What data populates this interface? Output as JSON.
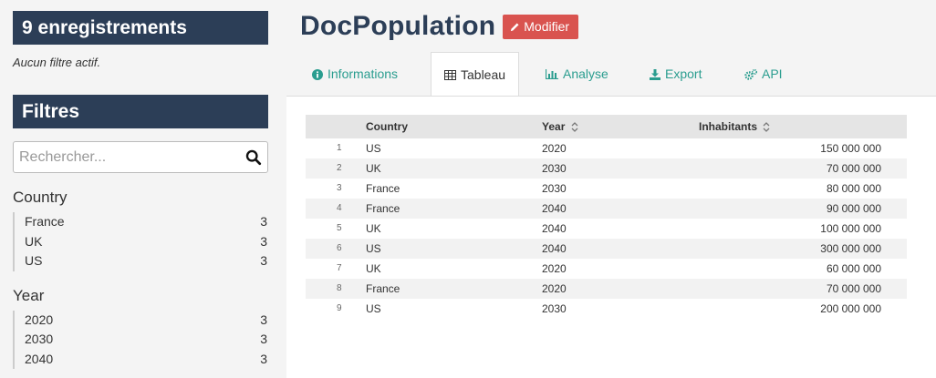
{
  "sidebar": {
    "record_count": "9 enregistrements",
    "no_filter": "Aucun filtre actif.",
    "filters_title": "Filtres",
    "search_placeholder": "Rechercher...",
    "facets": [
      {
        "title": "Country",
        "items": [
          {
            "label": "France",
            "count": "3"
          },
          {
            "label": "UK",
            "count": "3"
          },
          {
            "label": "US",
            "count": "3"
          }
        ]
      },
      {
        "title": "Year",
        "items": [
          {
            "label": "2020",
            "count": "3"
          },
          {
            "label": "2030",
            "count": "3"
          },
          {
            "label": "2040",
            "count": "3"
          }
        ]
      }
    ]
  },
  "header": {
    "title": "DocPopulation",
    "modify_label": "Modifier"
  },
  "tabs": [
    {
      "label": "Informations",
      "icon": "info-circle-icon"
    },
    {
      "label": "Tableau",
      "icon": "table-icon",
      "active": true
    },
    {
      "label": "Analyse",
      "icon": "bar-chart-icon"
    },
    {
      "label": "Export",
      "icon": "download-icon"
    },
    {
      "label": "API",
      "icon": "gears-icon"
    }
  ],
  "table": {
    "headers": {
      "country": "Country",
      "year": "Year",
      "inhabitants": "Inhabitants"
    },
    "rows": [
      {
        "idx": "1",
        "country": "US",
        "year": "2020",
        "inhabitants": "150 000 000"
      },
      {
        "idx": "2",
        "country": "UK",
        "year": "2030",
        "inhabitants": "70 000 000"
      },
      {
        "idx": "3",
        "country": "France",
        "year": "2030",
        "inhabitants": "80 000 000"
      },
      {
        "idx": "4",
        "country": "France",
        "year": "2040",
        "inhabitants": "90 000 000"
      },
      {
        "idx": "5",
        "country": "UK",
        "year": "2040",
        "inhabitants": "100 000 000"
      },
      {
        "idx": "6",
        "country": "US",
        "year": "2040",
        "inhabitants": "300 000 000"
      },
      {
        "idx": "7",
        "country": "UK",
        "year": "2020",
        "inhabitants": "60 000 000"
      },
      {
        "idx": "8",
        "country": "France",
        "year": "2020",
        "inhabitants": "70 000 000"
      },
      {
        "idx": "9",
        "country": "US",
        "year": "2030",
        "inhabitants": "200 000 000"
      }
    ]
  },
  "colors": {
    "navy": "#2c3e57",
    "teal": "#2a9d8f",
    "danger": "#d9534f"
  }
}
